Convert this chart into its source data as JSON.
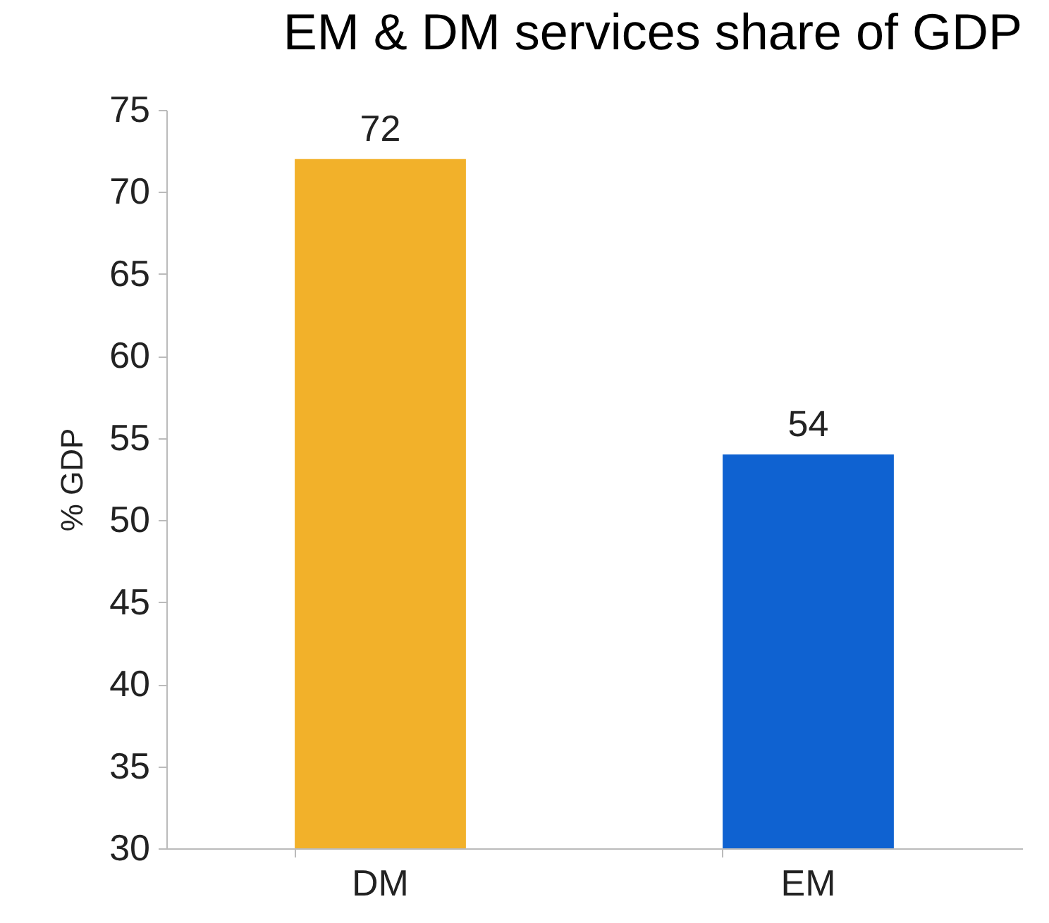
{
  "chart_data": {
    "type": "bar",
    "title": "EM & DM services share of GDP",
    "ylabel": "% GDP",
    "categories": [
      "DM",
      "EM"
    ],
    "values": [
      72,
      54
    ],
    "colors": [
      "#f2b12a",
      "#0f62d1"
    ],
    "ylim": [
      30,
      75
    ],
    "yticks": [
      30,
      35,
      40,
      45,
      50,
      55,
      60,
      65,
      70,
      75
    ],
    "data_labels": true,
    "grid": false
  }
}
